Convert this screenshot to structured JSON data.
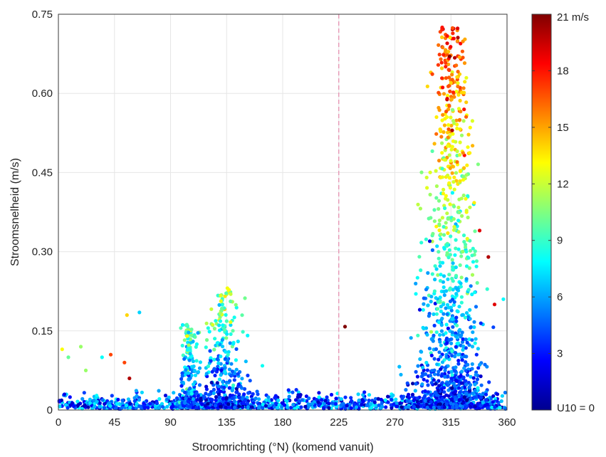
{
  "chart_data": {
    "type": "scatter",
    "xlabel": "Stroomrichting (°N) (komend vanuit)",
    "ylabel": "Stroomsnelheid (m/s)",
    "xlim": [
      0,
      360
    ],
    "ylim": [
      0,
      0.75
    ],
    "x_ticks": [
      "0",
      "45",
      "90",
      "135",
      "180",
      "225",
      "270",
      "315",
      "360"
    ],
    "y_ticks": [
      "0",
      "0.15",
      "0.30",
      "0.45",
      "0.60",
      "0.75"
    ],
    "grid": true,
    "reference_line": {
      "x": 225,
      "style": "dashed",
      "color": "#e58fb0"
    },
    "colorbar": {
      "variable": "U10",
      "range": [
        0,
        21
      ],
      "unit": "m/s",
      "colormap": "jet",
      "tick_labels": [
        "U10 = 0",
        "3",
        "6",
        "9",
        "12",
        "15",
        "18",
        "21 m/s"
      ],
      "tick_values": [
        0,
        3,
        6,
        9,
        12,
        15,
        18,
        21
      ]
    },
    "clusters": [
      {
        "name": "",
        "x_center": 315,
        "x_spread": 14,
        "speed_max": 0.72,
        "color_low": 3,
        "color_high": 18
      },
      {
        "name": "",
        "x_center": 133,
        "x_spread": 10,
        "speed_max": 0.23,
        "color_low": 3,
        "color_high": 12
      },
      {
        "name": "",
        "x_center": 105,
        "x_spread": 5,
        "speed_max": 0.16,
        "color_low": 4,
        "color_high": 10
      }
    ],
    "notable_points": [
      {
        "x": 308,
        "y": 0.725,
        "u10": 18
      },
      {
        "x": 314,
        "y": 0.67,
        "u10": 21
      },
      {
        "x": 315,
        "y": 0.62,
        "u10": 14
      },
      {
        "x": 312,
        "y": 0.59,
        "u10": 19
      },
      {
        "x": 322,
        "y": 0.55,
        "u10": 16
      },
      {
        "x": 316,
        "y": 0.53,
        "u10": 20
      },
      {
        "x": 320,
        "y": 0.47,
        "u10": 16
      },
      {
        "x": 230,
        "y": 0.158,
        "u10": 21
      },
      {
        "x": 65,
        "y": 0.185,
        "u10": 7
      },
      {
        "x": 55,
        "y": 0.18,
        "u10": 14
      },
      {
        "x": 42,
        "y": 0.105,
        "u10": 17
      },
      {
        "x": 53,
        "y": 0.09,
        "u10": 17
      },
      {
        "x": 57,
        "y": 0.06,
        "u10": 20
      },
      {
        "x": 3,
        "y": 0.115,
        "u10": 13
      },
      {
        "x": 18,
        "y": 0.12,
        "u10": 11
      },
      {
        "x": 8,
        "y": 0.1,
        "u10": 10
      },
      {
        "x": 22,
        "y": 0.075,
        "u10": 11
      },
      {
        "x": 35,
        "y": 0.1,
        "u10": 8
      },
      {
        "x": 350,
        "y": 0.2,
        "u10": 19
      },
      {
        "x": 345,
        "y": 0.29,
        "u10": 20
      },
      {
        "x": 338,
        "y": 0.34,
        "u10": 19
      },
      {
        "x": 298,
        "y": 0.32,
        "u10": 2
      },
      {
        "x": 290,
        "y": 0.19,
        "u10": 2
      }
    ]
  }
}
